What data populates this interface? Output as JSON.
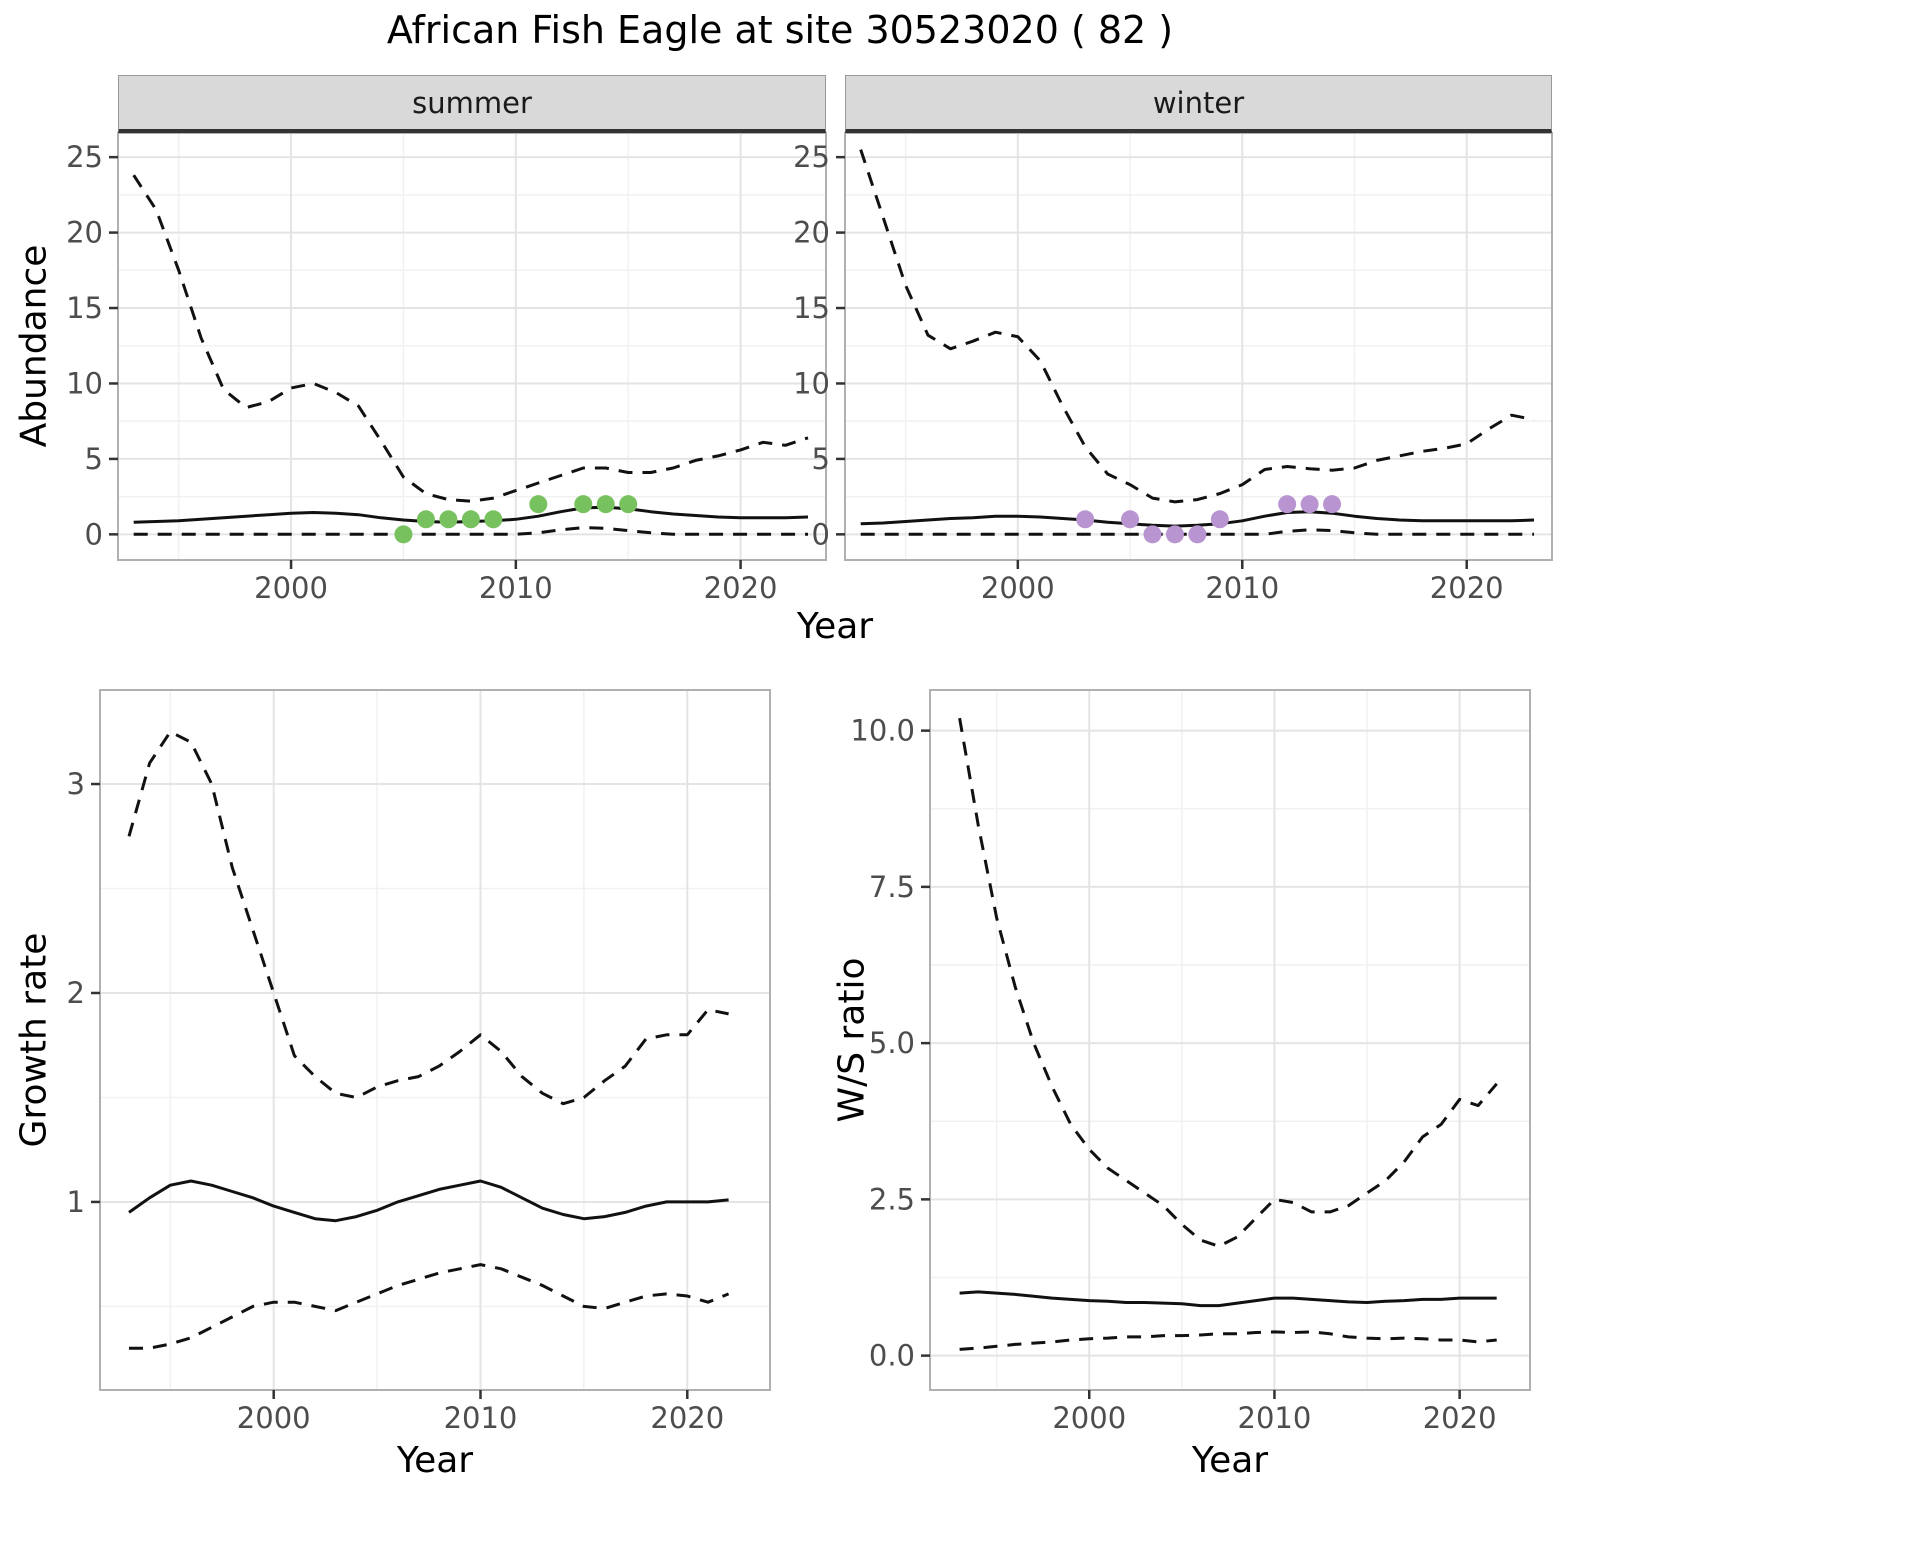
{
  "title": "African Fish Eagle at site 30523020 ( 82 )",
  "colors": {
    "summer_points": "#78c15f",
    "winter_points": "#b894d0",
    "line": "#111111",
    "strip_background": "#d9d9d9"
  },
  "chart_data": [
    {
      "id": "abundance-summer",
      "type": "line",
      "facet_label": "summer",
      "xlabel": "Year",
      "ylabel": "Abundance",
      "xlim": [
        1992.3,
        2023.8
      ],
      "ylim": [
        -1.7,
        26.6
      ],
      "xticks": [
        2000,
        2010,
        2020
      ],
      "yticks": [
        0,
        5,
        10,
        15,
        20,
        25
      ],
      "grid": true,
      "x": [
        1993,
        1994,
        1995,
        1996,
        1997,
        1998,
        1999,
        2000,
        2001,
        2002,
        2003,
        2004,
        2005,
        2006,
        2007,
        2008,
        2009,
        2010,
        2011,
        2012,
        2013,
        2014,
        2015,
        2016,
        2017,
        2018,
        2019,
        2020,
        2021,
        2022,
        2023
      ],
      "series": [
        {
          "name": "upper-ci",
          "style": "dashed",
          "y": [
            23.8,
            21.5,
            17.5,
            13.0,
            9.6,
            8.4,
            8.8,
            9.7,
            10.0,
            9.4,
            8.5,
            6.2,
            3.8,
            2.7,
            2.3,
            2.2,
            2.4,
            2.9,
            3.4,
            3.9,
            4.4,
            4.4,
            4.1,
            4.1,
            4.4,
            4.9,
            5.2,
            5.6,
            6.1,
            5.9,
            6.4
          ]
        },
        {
          "name": "median",
          "style": "solid",
          "y": [
            0.8,
            0.85,
            0.9,
            1.0,
            1.1,
            1.2,
            1.3,
            1.4,
            1.45,
            1.4,
            1.3,
            1.1,
            0.95,
            0.85,
            0.8,
            0.85,
            0.9,
            1.0,
            1.2,
            1.5,
            1.75,
            1.8,
            1.7,
            1.5,
            1.35,
            1.25,
            1.15,
            1.1,
            1.1,
            1.1,
            1.15
          ]
        },
        {
          "name": "lower-ci",
          "style": "dashed",
          "y": [
            0,
            0,
            0,
            0,
            0,
            0,
            0,
            0,
            0,
            0,
            0,
            0,
            0,
            0,
            0,
            0,
            0,
            0,
            0.1,
            0.3,
            0.45,
            0.4,
            0.25,
            0.1,
            0,
            0,
            0,
            0,
            0,
            0,
            0
          ]
        }
      ],
      "points": {
        "name": "summer-observation-point",
        "color": "#78c15f",
        "x": [
          2005,
          2006,
          2007,
          2008,
          2009,
          2011,
          2013,
          2014,
          2015
        ],
        "y": [
          0,
          1,
          1,
          1,
          1,
          2,
          2,
          2,
          2
        ]
      }
    },
    {
      "id": "abundance-winter",
      "type": "line",
      "facet_label": "winter",
      "xlabel": "Year",
      "ylabel": "Abundance",
      "xlim": [
        1992.3,
        2023.8
      ],
      "ylim": [
        -1.7,
        26.6
      ],
      "xticks": [
        2000,
        2010,
        2020
      ],
      "yticks": [
        0,
        5,
        10,
        15,
        20,
        25
      ],
      "grid": true,
      "x": [
        1993,
        1994,
        1995,
        1996,
        1997,
        1998,
        1999,
        2000,
        2001,
        2002,
        2003,
        2004,
        2005,
        2006,
        2007,
        2008,
        2009,
        2010,
        2011,
        2012,
        2013,
        2014,
        2015,
        2016,
        2017,
        2018,
        2019,
        2020,
        2021,
        2022,
        2023
      ],
      "series": [
        {
          "name": "upper-ci",
          "style": "dashed",
          "y": [
            25.5,
            21.0,
            16.5,
            13.2,
            12.3,
            12.8,
            13.4,
            13.1,
            11.5,
            8.5,
            5.8,
            4.0,
            3.3,
            2.4,
            2.15,
            2.3,
            2.7,
            3.3,
            4.3,
            4.5,
            4.35,
            4.25,
            4.4,
            4.9,
            5.2,
            5.5,
            5.7,
            6.0,
            7.0,
            7.9,
            7.6
          ]
        },
        {
          "name": "median",
          "style": "solid",
          "y": [
            0.7,
            0.75,
            0.85,
            0.95,
            1.05,
            1.1,
            1.2,
            1.2,
            1.15,
            1.05,
            0.95,
            0.8,
            0.7,
            0.6,
            0.55,
            0.6,
            0.7,
            0.9,
            1.2,
            1.45,
            1.5,
            1.4,
            1.2,
            1.05,
            0.95,
            0.9,
            0.9,
            0.9,
            0.9,
            0.9,
            0.95
          ]
        },
        {
          "name": "lower-ci",
          "style": "dashed",
          "y": [
            0,
            0,
            0,
            0,
            0,
            0,
            0,
            0,
            0,
            0,
            0,
            0,
            0,
            0,
            0,
            0,
            0,
            0,
            0,
            0.2,
            0.3,
            0.25,
            0.1,
            0,
            0,
            0,
            0,
            0,
            0,
            0,
            0
          ]
        }
      ],
      "points": {
        "name": "winter-observation-point",
        "color": "#b894d0",
        "x": [
          2003,
          2005,
          2006,
          2007,
          2008,
          2009,
          2012,
          2013,
          2014
        ],
        "y": [
          1,
          1,
          0,
          0,
          0,
          1,
          2,
          2,
          2
        ]
      }
    },
    {
      "id": "growth-rate",
      "type": "line",
      "xlabel": "Year",
      "ylabel": "Growth rate",
      "xlim": [
        1991.6,
        2024.0
      ],
      "ylim": [
        0.1,
        3.45
      ],
      "xticks": [
        2000,
        2010,
        2020
      ],
      "yticks": [
        1,
        2,
        3
      ],
      "grid": true,
      "x": [
        1993,
        1994,
        1995,
        1996,
        1997,
        1998,
        1999,
        2000,
        2001,
        2002,
        2003,
        2004,
        2005,
        2006,
        2007,
        2008,
        2009,
        2010,
        2011,
        2012,
        2013,
        2014,
        2015,
        2016,
        2017,
        2018,
        2019,
        2020,
        2021,
        2022
      ],
      "series": [
        {
          "name": "upper-ci",
          "style": "dashed",
          "y": [
            2.75,
            3.1,
            3.25,
            3.2,
            3.0,
            2.6,
            2.3,
            2.0,
            1.7,
            1.6,
            1.52,
            1.5,
            1.55,
            1.58,
            1.6,
            1.65,
            1.72,
            1.8,
            1.72,
            1.6,
            1.52,
            1.47,
            1.5,
            1.58,
            1.65,
            1.78,
            1.8,
            1.8,
            1.92,
            1.9
          ]
        },
        {
          "name": "median",
          "style": "solid",
          "y": [
            0.95,
            1.02,
            1.08,
            1.1,
            1.08,
            1.05,
            1.02,
            0.98,
            0.95,
            0.92,
            0.91,
            0.93,
            0.96,
            1.0,
            1.03,
            1.06,
            1.08,
            1.1,
            1.07,
            1.02,
            0.97,
            0.94,
            0.92,
            0.93,
            0.95,
            0.98,
            1.0,
            1.0,
            1.0,
            1.01
          ]
        },
        {
          "name": "lower-ci",
          "style": "dashed",
          "y": [
            0.3,
            0.3,
            0.32,
            0.35,
            0.4,
            0.45,
            0.5,
            0.52,
            0.52,
            0.5,
            0.48,
            0.52,
            0.56,
            0.6,
            0.63,
            0.66,
            0.68,
            0.7,
            0.68,
            0.64,
            0.6,
            0.55,
            0.5,
            0.49,
            0.52,
            0.55,
            0.56,
            0.55,
            0.52,
            0.56
          ]
        }
      ]
    },
    {
      "id": "ws-ratio",
      "type": "line",
      "xlabel": "Year",
      "ylabel": "W/S ratio",
      "xlim": [
        1991.4,
        2023.8
      ],
      "ylim": [
        -0.55,
        10.65
      ],
      "xticks": [
        2000,
        2010,
        2020
      ],
      "yticks": [
        0,
        2.5,
        5,
        7.5,
        10
      ],
      "ytick_labels": [
        "0.0",
        "2.5",
        "5.0",
        "7.5",
        "10.0"
      ],
      "grid": true,
      "x": [
        1993,
        1994,
        1995,
        1996,
        1997,
        1998,
        1999,
        2000,
        2001,
        2002,
        2003,
        2004,
        2005,
        2006,
        2007,
        2008,
        2009,
        2010,
        2011,
        2012,
        2013,
        2014,
        2015,
        2016,
        2017,
        2018,
        2019,
        2020,
        2021,
        2022
      ],
      "series": [
        {
          "name": "upper-ci",
          "style": "dashed",
          "y": [
            10.2,
            8.5,
            7.0,
            5.9,
            5.0,
            4.3,
            3.7,
            3.3,
            3.0,
            2.8,
            2.6,
            2.4,
            2.1,
            1.85,
            1.75,
            1.9,
            2.2,
            2.5,
            2.45,
            2.3,
            2.3,
            2.4,
            2.6,
            2.8,
            3.1,
            3.5,
            3.7,
            4.1,
            4.0,
            4.35
          ]
        },
        {
          "name": "median",
          "style": "solid",
          "y": [
            1.0,
            1.02,
            1.0,
            0.98,
            0.95,
            0.92,
            0.9,
            0.88,
            0.87,
            0.85,
            0.85,
            0.84,
            0.83,
            0.8,
            0.8,
            0.84,
            0.88,
            0.92,
            0.92,
            0.9,
            0.88,
            0.86,
            0.85,
            0.87,
            0.88,
            0.9,
            0.9,
            0.92,
            0.92,
            0.92
          ]
        },
        {
          "name": "lower-ci",
          "style": "dashed",
          "y": [
            0.1,
            0.12,
            0.15,
            0.18,
            0.2,
            0.22,
            0.25,
            0.27,
            0.28,
            0.3,
            0.3,
            0.32,
            0.32,
            0.33,
            0.35,
            0.35,
            0.37,
            0.38,
            0.37,
            0.38,
            0.35,
            0.3,
            0.28,
            0.27,
            0.28,
            0.27,
            0.25,
            0.25,
            0.22,
            0.25
          ]
        }
      ]
    }
  ]
}
